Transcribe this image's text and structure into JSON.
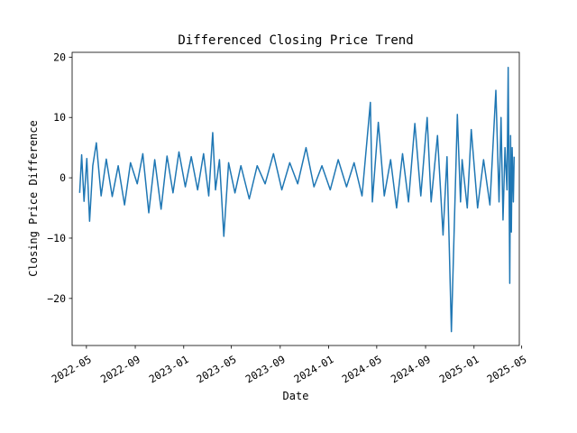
{
  "chart_data": {
    "type": "line",
    "title": "Differenced Closing Price Trend",
    "xlabel": "Date",
    "ylabel": "Closing Price Difference",
    "x_range": [
      "2022-03-26",
      "2025-04-25"
    ],
    "ylim": [
      -27.8,
      20.8
    ],
    "x_ticks": [
      "2022-05",
      "2022-09",
      "2023-01",
      "2023-05",
      "2023-09",
      "2024-01",
      "2024-05",
      "2024-09",
      "2025-01",
      "2025-05"
    ],
    "y_ticks": [
      -20,
      -10,
      0,
      10,
      20
    ],
    "grid": false,
    "line_color": "#1f77b4",
    "series": [
      {
        "x": [
          "2022-04-14",
          "2022-04-19",
          "2022-04-25",
          "2022-05-02",
          "2022-05-09",
          "2022-05-17",
          "2022-05-26",
          "2022-06-07",
          "2022-06-20",
          "2022-07-05",
          "2022-07-20",
          "2022-08-05",
          "2022-08-20",
          "2022-09-06",
          "2022-09-20",
          "2022-10-05",
          "2022-10-20",
          "2022-11-05",
          "2022-11-20",
          "2022-12-05",
          "2022-12-20",
          "2023-01-05",
          "2023-01-20",
          "2023-02-05",
          "2023-02-20",
          "2023-03-05",
          "2023-03-15",
          "2023-03-22",
          "2023-04-01",
          "2023-04-12",
          "2023-04-24",
          "2023-05-10",
          "2023-05-25",
          "2023-06-15",
          "2023-07-05",
          "2023-07-25",
          "2023-08-15",
          "2023-09-05",
          "2023-09-25",
          "2023-10-15",
          "2023-11-05",
          "2023-11-25",
          "2023-12-15",
          "2024-01-05",
          "2024-01-25",
          "2024-02-15",
          "2024-03-05",
          "2024-03-25",
          "2024-04-15",
          "2024-04-20",
          "2024-05-05",
          "2024-05-20",
          "2024-06-05",
          "2024-06-20",
          "2024-07-05",
          "2024-07-20",
          "2024-08-05",
          "2024-08-20",
          "2024-09-05",
          "2024-09-15",
          "2024-10-01",
          "2024-10-15",
          "2024-10-25",
          "2024-11-05",
          "2024-11-20",
          "2024-11-28",
          "2024-12-02",
          "2024-12-15",
          "2024-12-25",
          "2025-01-10",
          "2025-01-25",
          "2025-02-10",
          "2025-02-25",
          "2025-03-05",
          "2025-03-10",
          "2025-03-15",
          "2025-03-20",
          "2025-03-25",
          "2025-03-28",
          "2025-04-01",
          "2025-04-03",
          "2025-04-05",
          "2025-04-07",
          "2025-04-10",
          "2025-04-12"
        ],
        "values": [
          -2.5,
          3.8,
          -3.9,
          3.2,
          -7.2,
          2.0,
          5.8,
          -3.0,
          3.1,
          -3.1,
          2.0,
          -4.5,
          2.5,
          -1.0,
          4.0,
          -5.8,
          3.0,
          -5.2,
          3.6,
          -2.5,
          4.3,
          -1.5,
          3.5,
          -2.0,
          4.0,
          -3.0,
          7.5,
          -2.0,
          3.0,
          -9.7,
          2.5,
          -2.5,
          2.0,
          -3.5,
          2.0,
          -1.0,
          4.0,
          -2.0,
          2.5,
          -1.0,
          5.0,
          -1.5,
          2.0,
          -2.0,
          3.0,
          -1.5,
          2.5,
          -3.0,
          12.5,
          -4.0,
          9.2,
          -3.0,
          3.0,
          -5.0,
          4.0,
          -4.0,
          9.0,
          -3.0,
          10.0,
          -4.0,
          7.0,
          -9.5,
          3.5,
          -25.5,
          10.5,
          -4.0,
          3.0,
          -5.0,
          8.0,
          -5.0,
          3.0,
          -4.5,
          14.5,
          -4.0,
          10.0,
          -7.0,
          5.0,
          -2.0,
          18.3,
          -17.5,
          7.0,
          -9.0,
          5.0,
          -4.0,
          3.5
        ]
      }
    ]
  }
}
